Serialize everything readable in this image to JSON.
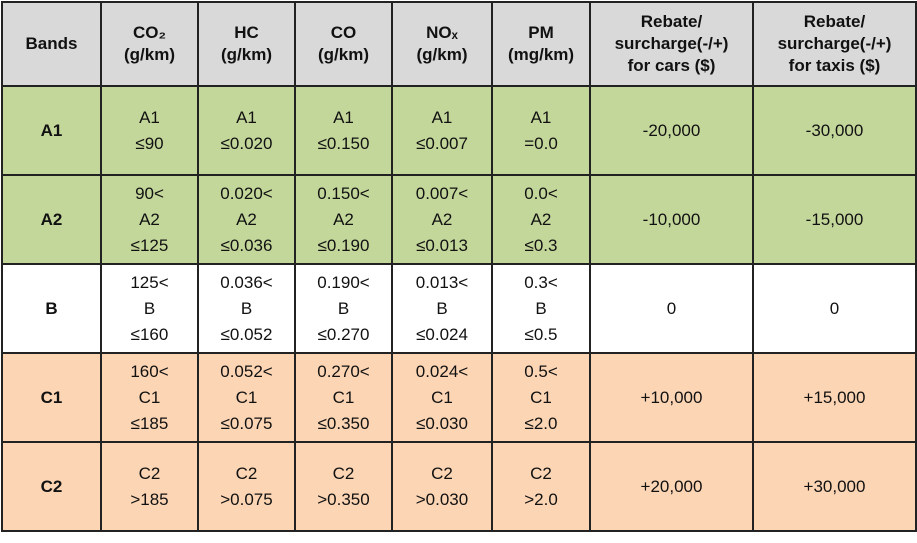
{
  "table": {
    "header": [
      [
        "Bands"
      ],
      [
        "CO₂",
        "(g/km)"
      ],
      [
        "HC",
        "(g/km)"
      ],
      [
        "CO",
        "(g/km)"
      ],
      [
        "NOₓ",
        "(g/km)"
      ],
      [
        "PM",
        "(mg/km)"
      ],
      [
        "Rebate/",
        "surcharge(-/+)",
        "for cars ($)"
      ],
      [
        "Rebate/",
        "surcharge(-/+)",
        "for taxis ($)"
      ]
    ],
    "rows": [
      [
        [
          "A1"
        ],
        [
          "A1",
          "≤90"
        ],
        [
          "A1",
          "≤0.020"
        ],
        [
          "A1",
          "≤0.150"
        ],
        [
          "A1",
          "≤0.007"
        ],
        [
          "A1",
          "=0.0"
        ],
        [
          "-20,000"
        ],
        [
          "-30,000"
        ]
      ],
      [
        [
          "A2"
        ],
        [
          "90<",
          "A2",
          "≤125"
        ],
        [
          "0.020<",
          "A2",
          "≤0.036"
        ],
        [
          "0.150<",
          "A2",
          "≤0.190"
        ],
        [
          "0.007<",
          "A2",
          "≤0.013"
        ],
        [
          "0.0<",
          "A2",
          "≤0.3"
        ],
        [
          "-10,000"
        ],
        [
          "-15,000"
        ]
      ],
      [
        [
          "B"
        ],
        [
          "125<",
          "B",
          "≤160"
        ],
        [
          "0.036<",
          "B",
          "≤0.052"
        ],
        [
          "0.190<",
          "B",
          "≤0.270"
        ],
        [
          "0.013<",
          "B",
          "≤0.024"
        ],
        [
          "0.3<",
          "B",
          "≤0.5"
        ],
        [
          "0"
        ],
        [
          "0"
        ]
      ],
      [
        [
          "C1"
        ],
        [
          "160<",
          "C1",
          "≤185"
        ],
        [
          "0.052<",
          "C1",
          "≤0.075"
        ],
        [
          "0.270<",
          "C1",
          "≤0.350"
        ],
        [
          "0.024<",
          "C1",
          "≤0.030"
        ],
        [
          "0.5<",
          "C1",
          "≤2.0"
        ],
        [
          "+10,000"
        ],
        [
          "+15,000"
        ]
      ],
      [
        [
          "C2"
        ],
        [
          "C2",
          ">185"
        ],
        [
          "C2",
          ">0.075"
        ],
        [
          "C2",
          ">0.350"
        ],
        [
          "C2",
          ">0.030"
        ],
        [
          "C2",
          ">2.0"
        ],
        [
          "+20,000"
        ],
        [
          "+30,000"
        ]
      ]
    ],
    "row_colors": [
      "#c4d79b",
      "#c4d79b",
      "#ffffff",
      "#fcd5b4",
      "#fcd5b4"
    ]
  }
}
